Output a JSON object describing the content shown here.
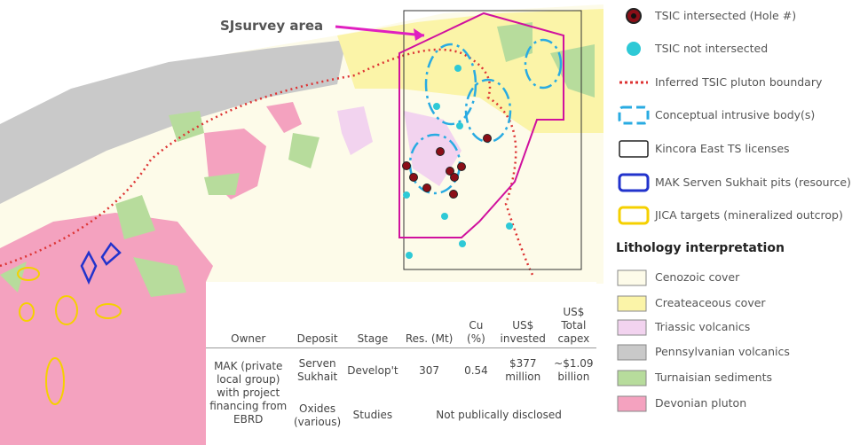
{
  "map": {
    "annotation": "SJsurvey area"
  },
  "legend": {
    "items": [
      "TSIC intersected (Hole #)",
      "TSIC not intersected",
      "Inferred TSIC pluton boundary",
      "Conceptual intrusive body(s)",
      "Kincora East TS licenses",
      "MAK Serven Sukhait pits (resource)",
      "JICA targets (mineralized outcrop)"
    ],
    "lithology_title": "Lithology interpretation",
    "lithology": [
      "Cenozoic cover",
      "Createaceous cover",
      "Triassic volcanics",
      "Pennsylvanian volcanics",
      "Turnaisian sediments",
      "Devonian pluton"
    ]
  },
  "table": {
    "headers": [
      "Owner",
      "Deposit",
      "Stage",
      "Res. (Mt)",
      "Cu (%)",
      "US$ invested",
      "US$ Total capex"
    ],
    "owner": "MAK (private local group) with project financing from EBRD",
    "row1": [
      "Serven Sukhait",
      "Develop't",
      "307",
      "0.54",
      "$377 million",
      "~$1.09 billion"
    ],
    "row2": [
      "Oxides (various)",
      "Studies",
      "Not publically disclosed"
    ]
  }
}
